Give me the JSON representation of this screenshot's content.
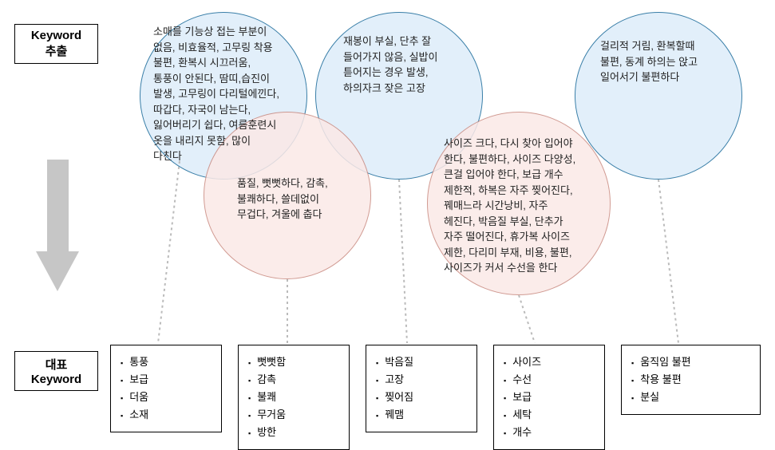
{
  "labels": {
    "keyword_extract": "Keyword\n추출",
    "representative_keyword": "대표\nKeyword"
  },
  "circles": {
    "blue1": "소매를 기능상 접는 부분이\n없음, 비효율적, 고무링 착용\n불편, 환복시 시끄러움,\n통풍이 안된다, 땀띠,습진이\n발생, 고무링이 다리털에낀다,\n따갑다, 자국이 남는다,\n잃어버리기 쉽다, 여름훈련시\n옷을 내리지 못함, 많이\n다친다",
    "blue2": "재봉이 부실, 단추 잘\n들어가지 않음, 실밥이\n튿어지는 경우 발생,\n하의자크 잦은 고장",
    "blue3": "걸리적 거림, 환복할때\n불편, 동계 하의는 앉고\n일어서기 불편하다",
    "pink1": "품질, 뻣뻣하다, 감촉,\n불쾌하다, 쓸데없이\n무겁다, 겨울에 춥다",
    "pink2": "사이즈 크다, 다시 찾아 입어야\n한다, 불편하다, 사이즈 다양성,\n큰걸 입어야 한다, 보급 개수\n제한적, 하복은 자주 찢어진다,\n꿰매느라 시간낭비, 자주\n헤진다, 박음질 부실, 단추가\n자주 떨어진다, 휴가복 사이즈\n제한, 다리미 부재, 비용, 불편,\n사이즈가 커서 수선을 한다"
  },
  "results": {
    "box1": [
      "통풍",
      "보급",
      "더움",
      "소재"
    ],
    "box2": [
      "뻣뻣함",
      "감촉",
      "불쾌",
      "무거움",
      "방한"
    ],
    "box3": [
      "박음질",
      "고장",
      "찢어짐",
      "꿰맴"
    ],
    "box4": [
      "사이즈",
      "수선",
      "보급",
      "세탁",
      "개수"
    ],
    "box5": [
      "움직임 불편",
      "착용 불편",
      "분실"
    ]
  },
  "colors": {
    "blue_fill": "#e2effa",
    "blue_border": "#3a7fa8",
    "pink_fill": "#fbe9e7",
    "pink_border": "#c98a80",
    "arrow": "#c6c6c6",
    "border": "#000000"
  }
}
